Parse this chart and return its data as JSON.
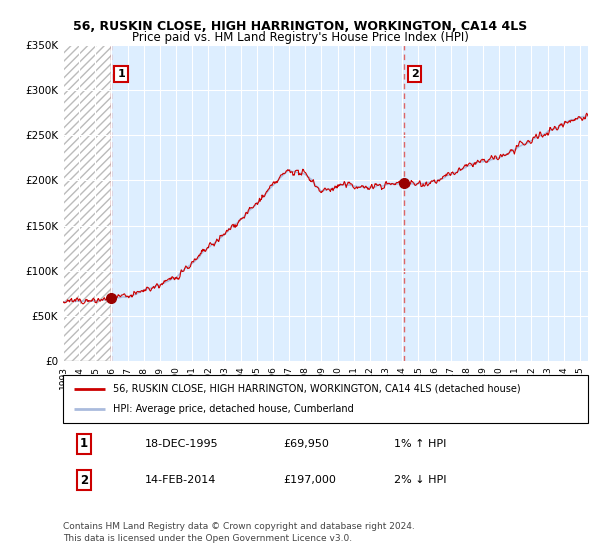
{
  "title_line1": "56, RUSKIN CLOSE, HIGH HARRINGTON, WORKINGTON, CA14 4LS",
  "title_line2": "Price paid vs. HM Land Registry's House Price Index (HPI)",
  "legend_red": "56, RUSKIN CLOSE, HIGH HARRINGTON, WORKINGTON, CA14 4LS (detached house)",
  "legend_blue": "HPI: Average price, detached house, Cumberland",
  "annotation1_date": "18-DEC-1995",
  "annotation1_price": "£69,950",
  "annotation1_hpi": "1% ↑ HPI",
  "annotation2_date": "14-FEB-2014",
  "annotation2_price": "£197,000",
  "annotation2_hpi": "2% ↓ HPI",
  "footnote": "Contains HM Land Registry data © Crown copyright and database right 2024.\nThis data is licensed under the Open Government Licence v3.0.",
  "sale1_year": 1995.96,
  "sale1_value": 69950,
  "sale2_year": 2014.12,
  "sale2_value": 197000,
  "ylim": [
    0,
    350000
  ],
  "xlim_start": 1993.0,
  "xlim_end": 2025.5,
  "bg_color": "#ddeeff",
  "grid_color": "#ffffff",
  "red_line_color": "#cc0000",
  "blue_line_color": "#aabbdd",
  "vline_color": "#dd6666",
  "dot_color": "#990000",
  "box_color": "#cc0000",
  "title_fontsize": 9,
  "subtitle_fontsize": 8.5
}
